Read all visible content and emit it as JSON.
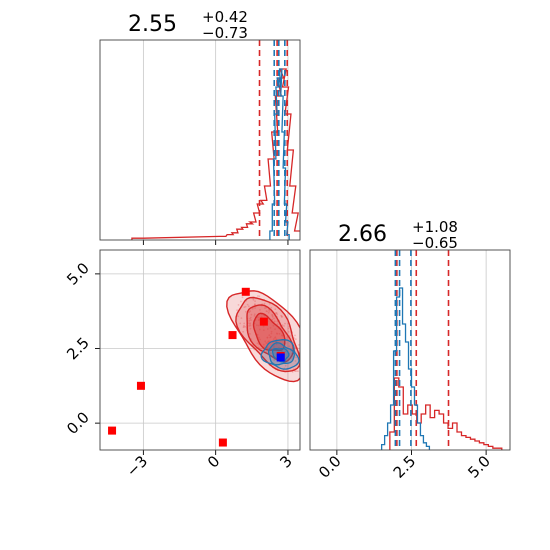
{
  "colors": {
    "red": "#d62728",
    "blue": "#1f77b4",
    "marker_red": "#ff0000",
    "marker_blue": "#0000ff",
    "grid": "#c8c8c8"
  },
  "chart_data": [
    {
      "panel": "top-left",
      "type": "histogram",
      "title": {
        "value": "2.55",
        "plus": "+0.42",
        "minus": "−0.73"
      },
      "xlim": [
        -4.8,
        3.5
      ],
      "xticks": [
        -3,
        0,
        3
      ],
      "grid": true,
      "series": [
        {
          "color": "red",
          "values": [
            [
              -3.35,
              0.01
            ],
            [
              -3.1,
              0.01
            ],
            [
              0.3,
              0.02
            ],
            [
              0.6,
              0.03
            ],
            [
              0.8,
              0.04
            ],
            [
              1.0,
              0.06
            ],
            [
              1.2,
              0.07
            ],
            [
              1.4,
              0.09
            ],
            [
              1.55,
              0.1
            ],
            [
              1.7,
              0.15
            ],
            [
              1.85,
              0.2
            ],
            [
              2.0,
              0.22
            ],
            [
              2.15,
              0.3
            ],
            [
              2.3,
              0.45
            ],
            [
              2.45,
              0.6
            ],
            [
              2.6,
              0.8
            ],
            [
              2.7,
              0.9
            ],
            [
              2.8,
              0.95
            ],
            [
              2.9,
              0.85
            ],
            [
              3.0,
              0.7
            ],
            [
              3.1,
              0.5
            ],
            [
              3.2,
              0.3
            ],
            [
              3.3,
              0.15
            ],
            [
              3.4,
              0.05
            ]
          ],
          "quantile_lines": [
            1.82,
            2.55,
            2.97
          ]
        },
        {
          "color": "blue",
          "values": [
            [
              2.3,
              0.05
            ],
            [
              2.4,
              0.2
            ],
            [
              2.45,
              0.45
            ],
            [
              2.5,
              0.7
            ],
            [
              2.55,
              0.85
            ],
            [
              2.6,
              0.9
            ],
            [
              2.65,
              0.85
            ],
            [
              2.7,
              0.95
            ],
            [
              2.75,
              0.8
            ],
            [
              2.8,
              0.6
            ],
            [
              2.85,
              0.4
            ],
            [
              2.9,
              0.2
            ],
            [
              2.95,
              0.1
            ],
            [
              3.0,
              0.03
            ]
          ],
          "quantile_lines": [
            2.43,
            2.62,
            2.87
          ]
        }
      ]
    },
    {
      "panel": "bottom-left",
      "type": "scatter",
      "xlim": [
        -4.8,
        3.5
      ],
      "ylim": [
        -0.9,
        5.8
      ],
      "xticks": [
        -3,
        0,
        3
      ],
      "xtick_labels": [
        "−3",
        "0",
        "3"
      ],
      "yticks": [
        0.0,
        2.5,
        5.0
      ],
      "ytick_labels": [
        "0.0",
        "2.5",
        "5.0"
      ],
      "grid": true,
      "red_markers": [
        [
          -4.3,
          -0.25
        ],
        [
          -3.1,
          1.25
        ],
        [
          0.3,
          -0.65
        ],
        [
          0.7,
          2.95
        ],
        [
          1.25,
          4.4
        ],
        [
          2.0,
          3.4
        ],
        [
          2.7,
          2.25
        ]
      ],
      "blue_markers": [
        [
          2.7,
          2.2
        ]
      ],
      "red_contour_center": [
        2.2,
        3.0
      ],
      "blue_contour_center": [
        2.7,
        2.3
      ]
    },
    {
      "panel": "bottom-right",
      "type": "histogram",
      "title": {
        "value": "2.66",
        "plus": "+1.08",
        "minus": "−0.65"
      },
      "xlim": [
        -0.9,
        5.8
      ],
      "xticks": [
        0.0,
        2.5,
        5.0
      ],
      "xtick_labels": [
        "0.0",
        "2.5",
        "5.0"
      ],
      "grid": true,
      "series": [
        {
          "color": "red",
          "values": [
            [
              1.85,
              0.1
            ],
            [
              2.0,
              0.4
            ],
            [
              2.15,
              0.35
            ],
            [
              2.3,
              0.2
            ],
            [
              2.45,
              0.25
            ],
            [
              2.6,
              0.2
            ],
            [
              2.75,
              0.15
            ],
            [
              2.9,
              0.2
            ],
            [
              3.05,
              0.25
            ],
            [
              3.2,
              0.18
            ],
            [
              3.35,
              0.22
            ],
            [
              3.5,
              0.2
            ],
            [
              3.65,
              0.15
            ],
            [
              3.8,
              0.12
            ],
            [
              3.95,
              0.15
            ],
            [
              4.1,
              0.1
            ],
            [
              4.25,
              0.08
            ],
            [
              4.4,
              0.07
            ],
            [
              4.55,
              0.06
            ],
            [
              4.7,
              0.05
            ],
            [
              4.85,
              0.04
            ],
            [
              5.0,
              0.03
            ],
            [
              5.15,
              0.02
            ],
            [
              5.3,
              0.01
            ],
            [
              5.45,
              0.01
            ]
          ],
          "quantile_lines": [
            2.01,
            2.66,
            3.74
          ]
        },
        {
          "color": "blue",
          "values": [
            [
              1.55,
              0.03
            ],
            [
              1.65,
              0.08
            ],
            [
              1.75,
              0.15
            ],
            [
              1.85,
              0.25
            ],
            [
              1.95,
              0.55
            ],
            [
              2.05,
              0.85
            ],
            [
              2.15,
              0.9
            ],
            [
              2.25,
              0.7
            ],
            [
              2.35,
              0.6
            ],
            [
              2.45,
              0.45
            ],
            [
              2.55,
              0.35
            ],
            [
              2.65,
              0.25
            ],
            [
              2.75,
              0.15
            ],
            [
              2.85,
              0.08
            ],
            [
              2.95,
              0.04
            ],
            [
              3.05,
              0.02
            ]
          ],
          "quantile_lines": [
            1.96,
            2.1,
            2.48
          ]
        }
      ]
    }
  ]
}
